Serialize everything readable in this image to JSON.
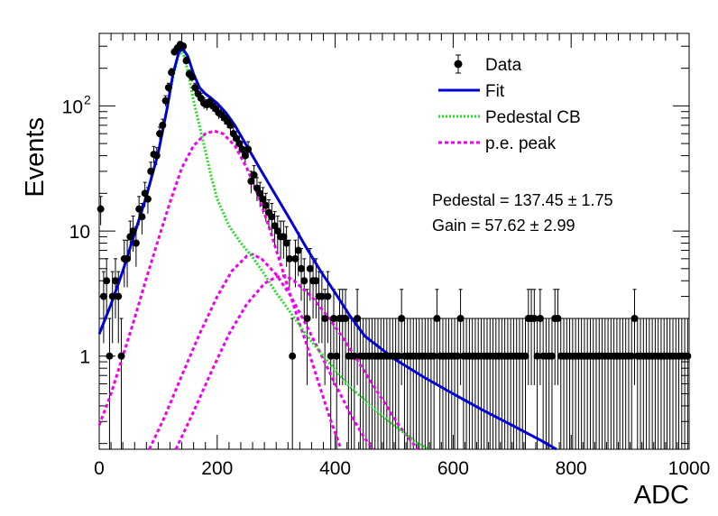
{
  "chart_data": {
    "type": "scatter",
    "title": "",
    "xlabel": "ADC",
    "ylabel": "Events",
    "xlim": [
      0,
      1000
    ],
    "ylim": [
      0.18,
      380
    ],
    "yscale": "log",
    "x_ticks": [
      0,
      200,
      400,
      600,
      800,
      1000
    ],
    "y_ticks": [
      {
        "value": 1,
        "label": "1"
      },
      {
        "value": 10,
        "label": "10"
      },
      {
        "value": 100,
        "label": "10",
        "exponent": "2"
      }
    ],
    "grid": false,
    "legend_position": "top-right",
    "legend": [
      {
        "key": "data",
        "label": "Data",
        "style": "marker"
      },
      {
        "key": "fit",
        "label": "Fit",
        "style": "solid",
        "color": "#0000d8"
      },
      {
        "key": "ped",
        "label": "Pedestal CB",
        "style": "dotted",
        "color": "#22dd22"
      },
      {
        "key": "pe",
        "label": "p.e. peak",
        "style": "dashed",
        "color": "#ee00ee"
      }
    ],
    "annotations": [
      {
        "key": "pedestal",
        "text": "Pedestal = 137.45",
        "pm": "±",
        "err": "1.75"
      },
      {
        "key": "gain",
        "text": "Gain = 57.62",
        "pm": "±",
        "err": "2.99"
      }
    ],
    "fit_params": {
      "pedestal": 137.45,
      "pedestal_err": 1.75,
      "gain": 57.62,
      "gain_err": 2.99
    },
    "bin_width": 5,
    "data_points": [
      [
        2.5,
        15
      ],
      [
        7.5,
        3
      ],
      [
        12.5,
        4
      ],
      [
        17.5,
        1
      ],
      [
        22.5,
        3
      ],
      [
        27.5,
        4
      ],
      [
        32.5,
        3
      ],
      [
        37.5,
        1
      ],
      [
        42.5,
        6
      ],
      [
        47.5,
        6
      ],
      [
        52.5,
        9
      ],
      [
        57.5,
        10
      ],
      [
        62.5,
        8
      ],
      [
        67.5,
        15
      ],
      [
        72.5,
        13
      ],
      [
        77.5,
        20
      ],
      [
        82.5,
        18
      ],
      [
        87.5,
        30
      ],
      [
        92.5,
        41
      ],
      [
        97.5,
        40
      ],
      [
        102.5,
        60
      ],
      [
        107.5,
        70
      ],
      [
        112.5,
        110
      ],
      [
        117.5,
        140
      ],
      [
        122.5,
        185
      ],
      [
        127.5,
        270
      ],
      [
        132.5,
        290
      ],
      [
        137.5,
        310
      ],
      [
        142.5,
        300
      ],
      [
        147.5,
        230
      ],
      [
        152.5,
        180
      ],
      [
        157.5,
        170
      ],
      [
        162.5,
        140
      ],
      [
        167.5,
        125
      ],
      [
        172.5,
        115
      ],
      [
        177.5,
        105
      ],
      [
        182.5,
        102
      ],
      [
        187.5,
        108
      ],
      [
        192.5,
        100
      ],
      [
        197.5,
        95
      ],
      [
        202.5,
        88
      ],
      [
        207.5,
        85
      ],
      [
        212.5,
        80
      ],
      [
        217.5,
        75
      ],
      [
        222.5,
        70
      ],
      [
        227.5,
        60
      ],
      [
        232.5,
        55
      ],
      [
        237.5,
        50
      ],
      [
        242.5,
        45
      ],
      [
        247.5,
        40
      ],
      [
        252.5,
        45
      ],
      [
        257.5,
        25
      ],
      [
        262.5,
        28
      ],
      [
        267.5,
        22
      ],
      [
        272.5,
        20
      ],
      [
        277.5,
        18
      ],
      [
        282.5,
        16
      ],
      [
        287.5,
        14
      ],
      [
        292.5,
        13
      ],
      [
        297.5,
        11
      ],
      [
        302.5,
        10
      ],
      [
        307.5,
        9
      ],
      [
        312.5,
        9
      ],
      [
        317.5,
        8
      ],
      [
        322.5,
        6
      ],
      [
        327.5,
        1
      ],
      [
        332.5,
        6
      ],
      [
        337.5,
        7
      ],
      [
        342.5,
        5
      ],
      [
        347.5,
        4
      ],
      [
        352.5,
        2
      ],
      [
        357.5,
        5
      ],
      [
        362.5,
        4
      ],
      [
        367.5,
        4
      ],
      [
        372.5,
        3
      ],
      [
        377.5,
        3
      ],
      [
        382.5,
        2
      ],
      [
        387.5,
        3
      ],
      [
        392.5,
        1
      ],
      [
        397.5,
        2
      ],
      [
        402.5,
        1
      ],
      [
        407.5,
        2
      ],
      [
        412.5,
        2
      ],
      [
        417.5,
        2
      ],
      [
        422.5,
        1
      ],
      [
        427.5,
        1
      ],
      [
        432.5,
        1
      ],
      [
        437.5,
        2
      ],
      [
        442.5,
        1
      ],
      [
        447.5,
        1
      ],
      [
        452.5,
        1
      ],
      [
        457.5,
        1
      ],
      [
        462.5,
        1
      ],
      [
        467.5,
        1
      ],
      [
        472.5,
        1
      ],
      [
        477.5,
        1
      ],
      [
        482.5,
        1
      ],
      [
        487.5,
        1
      ],
      [
        492.5,
        1
      ],
      [
        497.5,
        1
      ],
      [
        502.5,
        1
      ],
      [
        507.5,
        1
      ],
      [
        512.5,
        2
      ],
      [
        517.5,
        1
      ],
      [
        522.5,
        1
      ],
      [
        527.5,
        1
      ],
      [
        532.5,
        1
      ],
      [
        537.5,
        1
      ],
      [
        542.5,
        1
      ],
      [
        547.5,
        1
      ],
      [
        552.5,
        1
      ],
      [
        557.5,
        1
      ],
      [
        562.5,
        1
      ],
      [
        567.5,
        1
      ],
      [
        572.5,
        2
      ],
      [
        577.5,
        1
      ],
      [
        582.5,
        1
      ],
      [
        587.5,
        1
      ],
      [
        592.5,
        1
      ],
      [
        597.5,
        1
      ],
      [
        602.5,
        1
      ],
      [
        607.5,
        1
      ],
      [
        612.5,
        2
      ],
      [
        617.5,
        1
      ],
      [
        622.5,
        1
      ],
      [
        627.5,
        1
      ],
      [
        632.5,
        1
      ],
      [
        637.5,
        1
      ],
      [
        642.5,
        1
      ],
      [
        647.5,
        1
      ],
      [
        652.5,
        1
      ],
      [
        657.5,
        1
      ],
      [
        662.5,
        1
      ],
      [
        667.5,
        1
      ],
      [
        672.5,
        1
      ],
      [
        677.5,
        1
      ],
      [
        682.5,
        1
      ],
      [
        687.5,
        1
      ],
      [
        692.5,
        1
      ],
      [
        697.5,
        1
      ],
      [
        702.5,
        1
      ],
      [
        707.5,
        1
      ],
      [
        712.5,
        1
      ],
      [
        717.5,
        1
      ],
      [
        722.5,
        1
      ],
      [
        727.5,
        2
      ],
      [
        732.5,
        2
      ],
      [
        737.5,
        2
      ],
      [
        742.5,
        1
      ],
      [
        747.5,
        2
      ],
      [
        752.5,
        1
      ],
      [
        757.5,
        1
      ],
      [
        762.5,
        1
      ],
      [
        767.5,
        1
      ],
      [
        772.5,
        2
      ],
      [
        777.5,
        2
      ],
      [
        782.5,
        1
      ],
      [
        787.5,
        1
      ],
      [
        792.5,
        1
      ],
      [
        797.5,
        1
      ],
      [
        802.5,
        1
      ],
      [
        807.5,
        1
      ],
      [
        812.5,
        1
      ],
      [
        817.5,
        1
      ],
      [
        822.5,
        1
      ],
      [
        827.5,
        1
      ],
      [
        832.5,
        1
      ],
      [
        837.5,
        1
      ],
      [
        842.5,
        1
      ],
      [
        847.5,
        1
      ],
      [
        852.5,
        1
      ],
      [
        857.5,
        1
      ],
      [
        862.5,
        1
      ],
      [
        867.5,
        1
      ],
      [
        872.5,
        1
      ],
      [
        877.5,
        1
      ],
      [
        882.5,
        1
      ],
      [
        887.5,
        1
      ],
      [
        892.5,
        1
      ],
      [
        897.5,
        1
      ],
      [
        902.5,
        1
      ],
      [
        907.5,
        2
      ],
      [
        912.5,
        1
      ],
      [
        917.5,
        1
      ],
      [
        922.5,
        1
      ],
      [
        927.5,
        1
      ],
      [
        932.5,
        1
      ],
      [
        937.5,
        1
      ],
      [
        942.5,
        1
      ],
      [
        947.5,
        1
      ],
      [
        952.5,
        1
      ],
      [
        957.5,
        1
      ],
      [
        962.5,
        1
      ],
      [
        967.5,
        1
      ],
      [
        972.5,
        1
      ],
      [
        977.5,
        1
      ],
      [
        982.5,
        1
      ],
      [
        987.5,
        1
      ],
      [
        992.5,
        1
      ],
      [
        997.5,
        1
      ]
    ],
    "series": [
      {
        "key": "fit",
        "label": "Fit",
        "color": "#0000d8",
        "style": "solid",
        "points": [
          [
            0,
            1.5
          ],
          [
            20,
            2.6
          ],
          [
            40,
            4.8
          ],
          [
            60,
            9.5
          ],
          [
            80,
            19
          ],
          [
            100,
            42
          ],
          [
            115,
            95
          ],
          [
            125,
            180
          ],
          [
            135,
            270
          ],
          [
            142,
            285
          ],
          [
            150,
            250
          ],
          [
            160,
            180
          ],
          [
            170,
            140
          ],
          [
            180,
            125
          ],
          [
            190,
            115
          ],
          [
            200,
            105
          ],
          [
            215,
            88
          ],
          [
            230,
            70
          ],
          [
            250,
            48
          ],
          [
            275,
            30
          ],
          [
            300,
            19
          ],
          [
            325,
            12
          ],
          [
            350,
            7.5
          ],
          [
            375,
            4.8
          ],
          [
            400,
            3.2
          ],
          [
            425,
            2.1
          ],
          [
            450,
            1.45
          ],
          [
            500,
            0.95
          ],
          [
            550,
            0.68
          ],
          [
            600,
            0.5
          ],
          [
            650,
            0.37
          ],
          [
            700,
            0.28
          ],
          [
            750,
            0.21
          ],
          [
            775,
            0.18
          ]
        ]
      },
      {
        "key": "ped",
        "label": "Pedestal CB",
        "color": "#22dd22",
        "style": "dotted",
        "points": [
          [
            0,
            1.5
          ],
          [
            20,
            2.6
          ],
          [
            40,
            4.8
          ],
          [
            60,
            9.5
          ],
          [
            80,
            19
          ],
          [
            100,
            42
          ],
          [
            115,
            95
          ],
          [
            125,
            170
          ],
          [
            135,
            260
          ],
          [
            142,
            270
          ],
          [
            150,
            190
          ],
          [
            160,
            110
          ],
          [
            175,
            55
          ],
          [
            190,
            27
          ],
          [
            200,
            18
          ],
          [
            220,
            11
          ],
          [
            240,
            8
          ],
          [
            260,
            6.2
          ],
          [
            280,
            4.5
          ],
          [
            300,
            3.2
          ],
          [
            325,
            2.2
          ],
          [
            350,
            1.5
          ],
          [
            380,
            1.0
          ],
          [
            420,
            0.6
          ],
          [
            460,
            0.4
          ],
          [
            500,
            0.28
          ],
          [
            540,
            0.2
          ],
          [
            560,
            0.18
          ]
        ]
      },
      {
        "key": "pe1",
        "label": "p.e. peak",
        "color": "#ee00ee",
        "style": "dashed",
        "points": [
          [
            0,
            0.28
          ],
          [
            20,
            0.5
          ],
          [
            40,
            1.0
          ],
          [
            60,
            2.0
          ],
          [
            80,
            4.2
          ],
          [
            100,
            8.5
          ],
          [
            120,
            17
          ],
          [
            140,
            32
          ],
          [
            160,
            48
          ],
          [
            180,
            60
          ],
          [
            195,
            63
          ],
          [
            210,
            60
          ],
          [
            230,
            48
          ],
          [
            250,
            32
          ],
          [
            270,
            19
          ],
          [
            290,
            10
          ],
          [
            310,
            5
          ],
          [
            330,
            2.5
          ],
          [
            350,
            1.3
          ],
          [
            370,
            0.65
          ],
          [
            390,
            0.33
          ],
          [
            410,
            0.18
          ]
        ]
      },
      {
        "key": "pe2",
        "label": "p.e. peak",
        "color": "#ee00ee",
        "style": "dashed",
        "points": [
          [
            85,
            0.18
          ],
          [
            110,
            0.32
          ],
          [
            140,
            0.7
          ],
          [
            170,
            1.5
          ],
          [
            200,
            3.0
          ],
          [
            225,
            4.8
          ],
          [
            250,
            6.3
          ],
          [
            260,
            6.5
          ],
          [
            275,
            6.0
          ],
          [
            300,
            4.5
          ],
          [
            325,
            3.0
          ],
          [
            350,
            1.8
          ],
          [
            375,
            1.05
          ],
          [
            400,
            0.6
          ],
          [
            425,
            0.35
          ],
          [
            450,
            0.22
          ],
          [
            465,
            0.18
          ]
        ]
      },
      {
        "key": "pe3",
        "label": "p.e. peak",
        "color": "#ee00ee",
        "style": "dashed",
        "points": [
          [
            130,
            0.18
          ],
          [
            160,
            0.36
          ],
          [
            190,
            0.75
          ],
          [
            220,
            1.5
          ],
          [
            250,
            2.6
          ],
          [
            280,
            3.8
          ],
          [
            300,
            4.3
          ],
          [
            315,
            4.4
          ],
          [
            330,
            4.0
          ],
          [
            360,
            3.0
          ],
          [
            390,
            2.0
          ],
          [
            420,
            1.25
          ],
          [
            450,
            0.75
          ],
          [
            480,
            0.45
          ],
          [
            510,
            0.27
          ],
          [
            540,
            0.18
          ]
        ]
      }
    ]
  }
}
